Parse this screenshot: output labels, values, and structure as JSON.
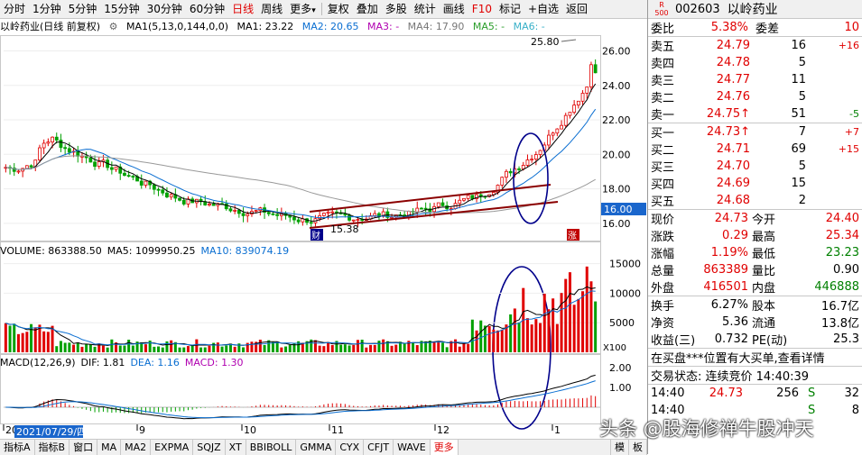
{
  "toolbar": {
    "periods": [
      "分时",
      "1分钟",
      "5分钟",
      "15分钟",
      "30分钟",
      "60分钟",
      "日线",
      "周线",
      "更多"
    ],
    "active_period": "日线",
    "tools": [
      "复权",
      "叠加",
      "多股",
      "统计",
      "画线",
      "F10",
      "标记",
      "+自选",
      "返回"
    ]
  },
  "chart_header": {
    "stock": "以岭药业(日线 前复权)",
    "ma1_def": "MA1(5,13,0,144,0,0)",
    "ma1": "MA1: 23.22",
    "ma2": "MA2: 20.65",
    "ma3": "MA3: -",
    "ma4": "MA4: 17.90",
    "ma5": "MA5: -",
    "ma6": "MA6: -"
  },
  "price_axis": [
    "26.00",
    "24.00",
    "22.00",
    "20.00",
    "18.00",
    "16.00"
  ],
  "annotations": {
    "high_label": "25.80",
    "low_label": "15.38",
    "current_price_tag": "16.00",
    "badge_cai": "财",
    "badge_zhang": "涨"
  },
  "volume_header": {
    "title": "VOLUME: 863388.50",
    "ma5": "MA5: 1099950.25",
    "ma10": "MA10: 839074.19"
  },
  "volume_axis": [
    "15000",
    "10000",
    "5000"
  ],
  "volume_unit": "X100",
  "macd_header": {
    "title": "MACD(12,26,9)",
    "dif": "DIF: 1.81",
    "dea": "DEA: 1.16",
    "macd": "MACD: 1.30"
  },
  "macd_axis": [
    "2.00",
    "1.00"
  ],
  "date_axis": {
    "cursor_date": "2021/07/29/四",
    "months": [
      "20",
      "9",
      "10",
      "11",
      "12",
      "1"
    ]
  },
  "bottom_tabs": [
    "指标A",
    "指标B",
    "窗口",
    "MA",
    "MA2",
    "EXPMA",
    "SQJZ",
    "XT",
    "BBIBOLL",
    "GMMA",
    "CYX",
    "CFJT",
    "WAVE",
    "更多"
  ],
  "bottom_right": [
    "模",
    "板"
  ],
  "quote": {
    "r_label": "R",
    "r_num": "500",
    "code": "002603",
    "name": "以岭药业",
    "webi_label": "委比",
    "webi": "5.38%",
    "weicha_label": "委差",
    "weicha": "10",
    "asks": [
      {
        "label": "卖五",
        "price": "24.79",
        "vol": "16",
        "chg": "+16"
      },
      {
        "label": "卖四",
        "price": "24.78",
        "vol": "5",
        "chg": ""
      },
      {
        "label": "卖三",
        "price": "24.77",
        "vol": "11",
        "chg": ""
      },
      {
        "label": "卖二",
        "price": "24.76",
        "vol": "5",
        "chg": ""
      },
      {
        "label": "卖一",
        "price": "24.75↑",
        "vol": "51",
        "chg": "-5"
      }
    ],
    "bids": [
      {
        "label": "买一",
        "price": "24.73↑",
        "vol": "7",
        "chg": "+7"
      },
      {
        "label": "买二",
        "price": "24.71",
        "vol": "69",
        "chg": "+15"
      },
      {
        "label": "买三",
        "price": "24.70",
        "vol": "5",
        "chg": ""
      },
      {
        "label": "买四",
        "price": "24.69",
        "vol": "15",
        "chg": ""
      },
      {
        "label": "买五",
        "price": "24.68",
        "vol": "2",
        "chg": ""
      }
    ],
    "stats": [
      {
        "l1": "现价",
        "v1": "24.73",
        "l2": "今开",
        "v2": "24.40"
      },
      {
        "l1": "涨跌",
        "v1": "0.29",
        "l2": "最高",
        "v2": "25.34"
      },
      {
        "l1": "涨幅",
        "v1": "1.19%",
        "l2": "最低",
        "v2": "23.23"
      },
      {
        "l1": "总量",
        "v1": "863389",
        "l2": "量比",
        "v2": "0.90"
      },
      {
        "l1": "外盘",
        "v1": "416501",
        "l2": "内盘",
        "v2": "446888"
      }
    ],
    "stats2": [
      {
        "l1": "换手",
        "v1": "6.27%",
        "l2": "股本",
        "v2": "16.7亿"
      },
      {
        "l1": "净资",
        "v1": "5.36",
        "l2": "流通",
        "v2": "13.8亿"
      },
      {
        "l1": "收益(三)",
        "v1": "0.732",
        "l2": "PE(动)",
        "v2": "25.3"
      }
    ],
    "notice": "在买盘***位置有大买单,查看详情",
    "trade_status": "交易状态: 连续竞价  14:40:39",
    "ticks": [
      {
        "time": "14:40",
        "price": "24.73",
        "vol": "256",
        "dir": "S",
        "num": "32"
      },
      {
        "time": "14:40",
        "price": "",
        "vol": "",
        "dir": "S",
        "num": "8"
      }
    ]
  },
  "watermark": "头条 @股海修禅牛股冲天"
}
